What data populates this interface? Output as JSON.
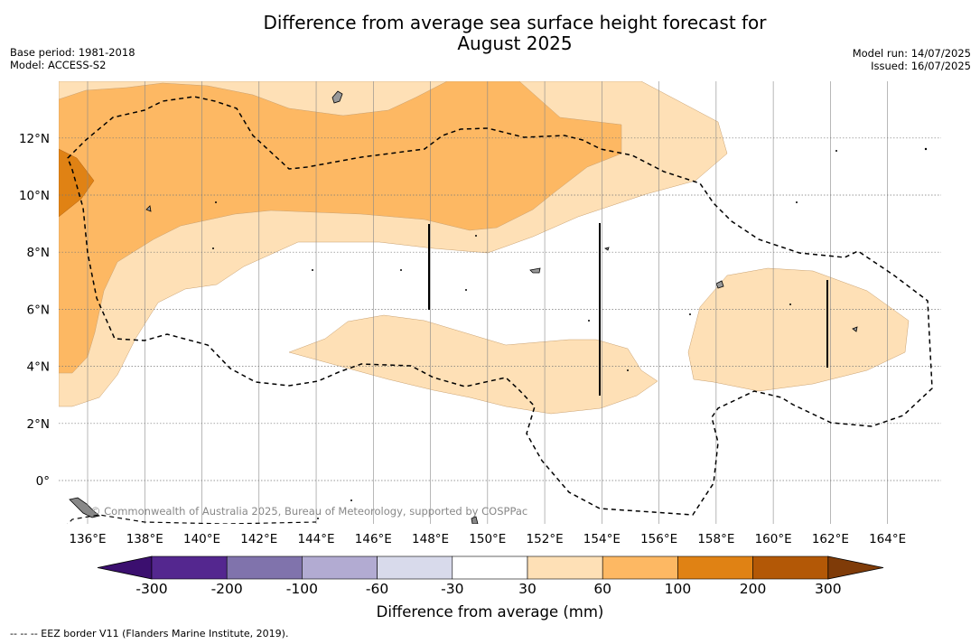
{
  "title_line1": "Difference from average sea surface height forecast for",
  "title_line2": "August 2025",
  "base_period": "Base period: 1981-2018",
  "model": "Model: ACCESS-S2",
  "model_run": "Model run: 14/07/2025",
  "issued": "Issued: 16/07/2025",
  "credit": "© Commonwealth of Australia 2025, Bureau of Meteorology, supported by COSPPac",
  "lon_ticks": [
    "136°E",
    "138°E",
    "140°E",
    "142°E",
    "144°E",
    "146°E",
    "148°E",
    "150°E",
    "152°E",
    "154°E",
    "156°E",
    "158°E",
    "160°E",
    "162°E",
    "164°E"
  ],
  "lat_ticks": [
    "12°N",
    "10°N",
    "8°N",
    "6°N",
    "4°N",
    "2°N",
    "0°"
  ],
  "colorbar": {
    "title": "Difference from average (mm)",
    "tick_labels": [
      "-300",
      "-200",
      "-100",
      "-60",
      "-30",
      "30",
      "60",
      "100",
      "200",
      "300"
    ],
    "colors": [
      "#3b0f6f",
      "#54278f",
      "#8073ac",
      "#b2abd2",
      "#d8daeb",
      "#ffffff",
      "#fee0b6",
      "#fdb863",
      "#e08214",
      "#b35806",
      "#7f3b08"
    ]
  },
  "footnote": "-- -- -- EEZ border V11 (Flanders Marine Institute, 2019).",
  "map": {
    "extent_lon": [
      135,
      166
    ],
    "extent_lat": [
      -1.5,
      14
    ],
    "legend_colors": {
      "light": "#fee0b6",
      "medium": "#fdb863",
      "dark": "#e08214"
    }
  }
}
